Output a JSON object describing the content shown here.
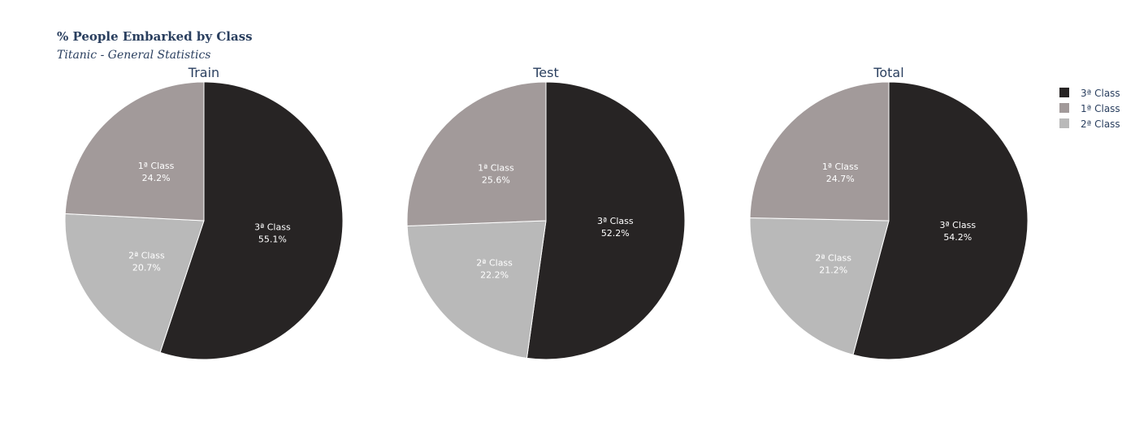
{
  "title": "% People Embarked by Class",
  "subtitle": "Titanic - General Statistics",
  "colors": {
    "3ª Class": "#272424",
    "1ª Class": "#a29a9a",
    "2ª Class": "#b9b9b9",
    "title": "#2a3f5f",
    "slice_text": "#ffffff"
  },
  "legend": {
    "placement": "top-right",
    "items": [
      "3ª Class",
      "1ª Class",
      "2ª Class"
    ]
  },
  "chart_data": [
    {
      "type": "pie",
      "title": "Train",
      "direction": "clockwise",
      "start": "12 o'clock",
      "slices": [
        {
          "label": "3ª Class",
          "value": 55.1,
          "text": "55.1%"
        },
        {
          "label": "2ª Class",
          "value": 20.7,
          "text": "20.7%"
        },
        {
          "label": "1ª Class",
          "value": 24.2,
          "text": "24.2%"
        }
      ]
    },
    {
      "type": "pie",
      "title": "Test",
      "direction": "clockwise",
      "start": "12 o'clock",
      "slices": [
        {
          "label": "3ª Class",
          "value": 52.2,
          "text": "52.2%"
        },
        {
          "label": "2ª Class",
          "value": 22.2,
          "text": "22.2%"
        },
        {
          "label": "1ª Class",
          "value": 25.6,
          "text": "25.6%"
        }
      ]
    },
    {
      "type": "pie",
      "title": "Total",
      "direction": "clockwise",
      "start": "12 o'clock",
      "slices": [
        {
          "label": "3ª Class",
          "value": 54.2,
          "text": "54.2%"
        },
        {
          "label": "2ª Class",
          "value": 21.2,
          "text": "21.2%"
        },
        {
          "label": "1ª Class",
          "value": 24.7,
          "text": "24.7%"
        }
      ]
    }
  ]
}
